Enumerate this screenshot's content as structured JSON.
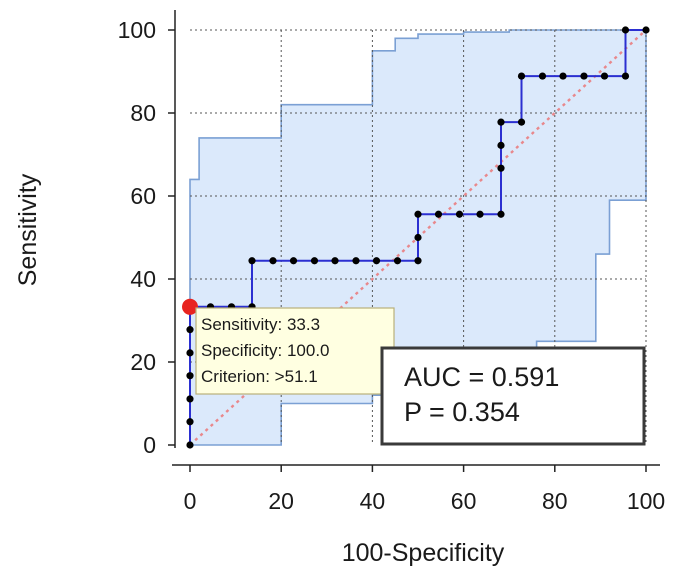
{
  "chart_data": {
    "type": "line",
    "xlabel": "100-Specificity",
    "ylabel": "Sensitivity",
    "xlim": [
      0,
      100
    ],
    "ylim": [
      0,
      100
    ],
    "x_ticks": [
      "0",
      "20",
      "40",
      "60",
      "80",
      "100"
    ],
    "y_ticks": [
      "0",
      "20",
      "40",
      "60",
      "80",
      "100"
    ],
    "grid": true,
    "colors": {
      "roc": "#2b2fd1",
      "confidence_band_fill": "#dbe9fb",
      "confidence_band_edge": "#7ba0d4",
      "diagonal": "#e8888c",
      "marker": "#000000",
      "highlight": "#e8231f"
    },
    "series": [
      {
        "x": [
          0,
          0,
          0,
          0,
          0,
          0,
          0,
          0,
          4.5,
          9.1,
          13.6,
          13.6,
          18.2,
          22.7,
          27.3,
          31.8,
          36.4,
          40.9,
          45.5,
          50.0,
          50.0,
          50.0,
          54.5,
          59.1,
          63.6,
          68.2,
          68.2,
          68.2,
          68.2,
          72.7,
          72.7,
          77.3,
          81.8,
          86.4,
          90.9,
          95.5,
          95.5,
          100.0
        ],
        "y": [
          0,
          5.6,
          11.1,
          16.7,
          22.2,
          27.8,
          33.3,
          33.3,
          33.3,
          33.3,
          33.3,
          44.4,
          44.4,
          44.4,
          44.4,
          44.4,
          44.4,
          44.4,
          44.4,
          44.4,
          50.0,
          55.6,
          55.6,
          55.6,
          55.6,
          55.6,
          66.7,
          72.2,
          77.8,
          77.8,
          88.9,
          88.9,
          88.9,
          88.9,
          88.9,
          88.9,
          100.0,
          100.0
        ]
      }
    ],
    "confidence_band": {
      "upper": {
        "x": [
          0,
          0,
          2,
          2,
          20,
          20,
          40,
          40,
          45,
          45,
          50,
          50,
          60,
          60,
          70,
          70,
          90,
          90,
          100
        ],
        "y": [
          0,
          64,
          64,
          74,
          74,
          82,
          82,
          95,
          95,
          98,
          98,
          99,
          99,
          99.5,
          99.5,
          100,
          100,
          100,
          100
        ]
      },
      "lower": {
        "x": [
          0,
          20,
          20,
          40,
          40,
          60,
          60,
          76,
          76,
          89,
          89,
          92,
          92,
          100,
          100
        ],
        "y": [
          0,
          0,
          10,
          10,
          12,
          12,
          15,
          15,
          25,
          25,
          46,
          46,
          59,
          59,
          100
        ]
      }
    },
    "highlight_point": {
      "x": 0,
      "y": 33.3
    },
    "tooltip": [
      "Sensitivity: 33.3",
      "Specificity: 100.0",
      "Criterion: >51.1"
    ],
    "stats": [
      "AUC = 0.591",
      "P = 0.354"
    ]
  }
}
